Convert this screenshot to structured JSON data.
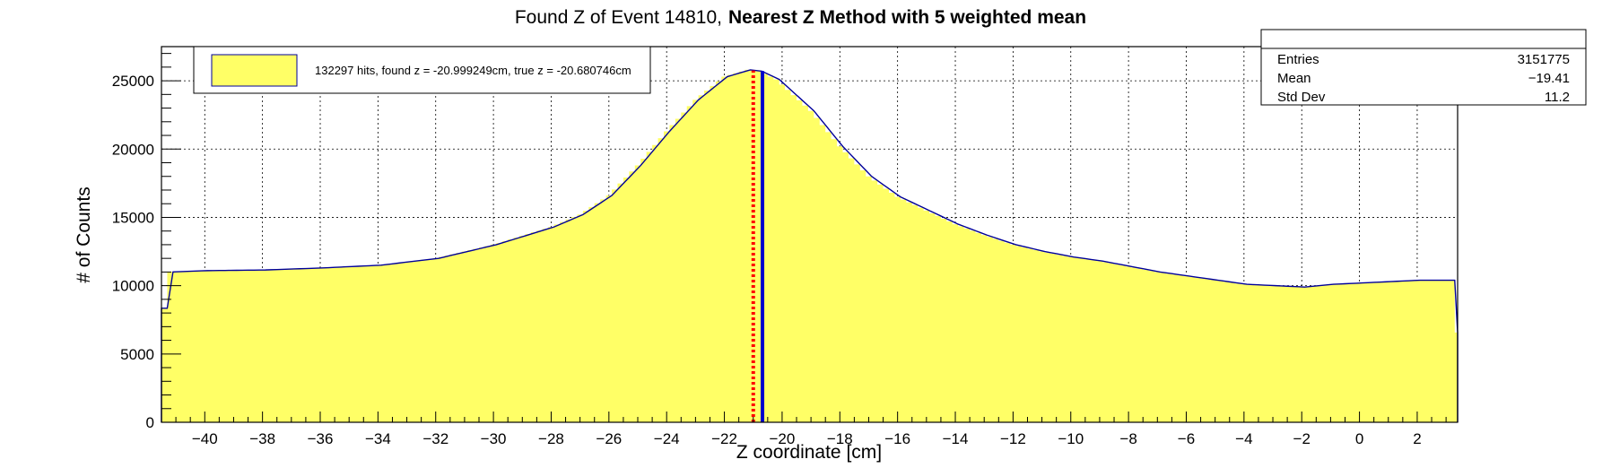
{
  "chart_data": {
    "type": "bar",
    "title_part1": "Found Z of Event 14810,",
    "title_part2": "Nearest Z Method with 5 weighted mean",
    "xlabel": "Z coordinate [cm]",
    "ylabel": "# of Counts",
    "xlim": [
      -41.5,
      3.4
    ],
    "ylim": [
      0,
      27500
    ],
    "x_ticks": [
      -40,
      -38,
      -36,
      -34,
      -32,
      -30,
      -28,
      -26,
      -24,
      -22,
      -20,
      -18,
      -16,
      -14,
      -12,
      -10,
      -8,
      -6,
      -4,
      -2,
      0,
      2
    ],
    "y_ticks": [
      0,
      5000,
      10000,
      15000,
      20000,
      25000
    ],
    "grid": true,
    "colors": {
      "fill": "#ffff66",
      "outline": "#000099",
      "true_line": "#0000cc",
      "found_line": "#ff0000",
      "found_line_dots": "#ffff66"
    },
    "histogram": {
      "bin_width": 0.2,
      "profile_x": [
        -41.5,
        -41.3,
        -40.0,
        -38.0,
        -36.0,
        -34.0,
        -32.0,
        -30.0,
        -28.0,
        -27.0,
        -26.0,
        -25.0,
        -24.0,
        -23.0,
        -22.0,
        -21.2,
        -20.8,
        -20.2,
        -19.0,
        -18.0,
        -17.0,
        -16.0,
        -15.0,
        -14.0,
        -13.0,
        -12.0,
        -11.0,
        -10.0,
        -9.0,
        -8.0,
        -7.0,
        -6.0,
        -5.0,
        -4.0,
        -3.0,
        -2.0,
        -1.0,
        0.0,
        1.0,
        2.0,
        3.2,
        3.4
      ],
      "profile_y": [
        5700,
        11000,
        11100,
        11150,
        11300,
        11500,
        12000,
        13000,
        14300,
        15200,
        16600,
        18800,
        21300,
        23600,
        25300,
        25800,
        25700,
        25100,
        22800,
        20200,
        18000,
        16500,
        15500,
        14500,
        13700,
        13000,
        12500,
        12100,
        11800,
        11400,
        11000,
        10700,
        10400,
        10100,
        10000,
        9900,
        10100,
        10200,
        10300,
        10400,
        10400,
        5300
      ]
    },
    "found_z": -20.999249,
    "true_z": -20.680746,
    "legend": {
      "position": "top-left",
      "entry": "132297 hits, found z = -20.999249cm, true z = -20.680746cm"
    },
    "stats": {
      "position": "top-right",
      "rows": [
        {
          "label": "Entries",
          "value": "3151775"
        },
        {
          "label": "Mean",
          "value": "−19.41"
        },
        {
          "label": "Std Dev",
          "value": "11.2"
        }
      ]
    }
  }
}
